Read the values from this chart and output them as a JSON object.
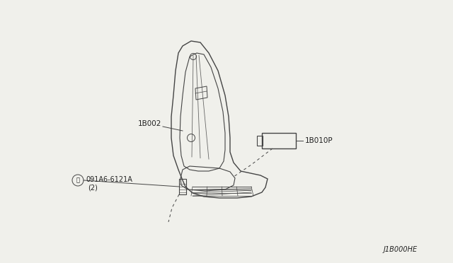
{
  "bg_color": "#f0f0eb",
  "line_color": "#444444",
  "text_color": "#222222",
  "diagram_code": "J1B000HE",
  "figsize": [
    6.4,
    3.72
  ],
  "dpi": 100,
  "label_1B002": "1B002",
  "label_1B010P": "1B010P",
  "label_bolt": "091A6-6121A",
  "label_bolt_qty": "(2)"
}
